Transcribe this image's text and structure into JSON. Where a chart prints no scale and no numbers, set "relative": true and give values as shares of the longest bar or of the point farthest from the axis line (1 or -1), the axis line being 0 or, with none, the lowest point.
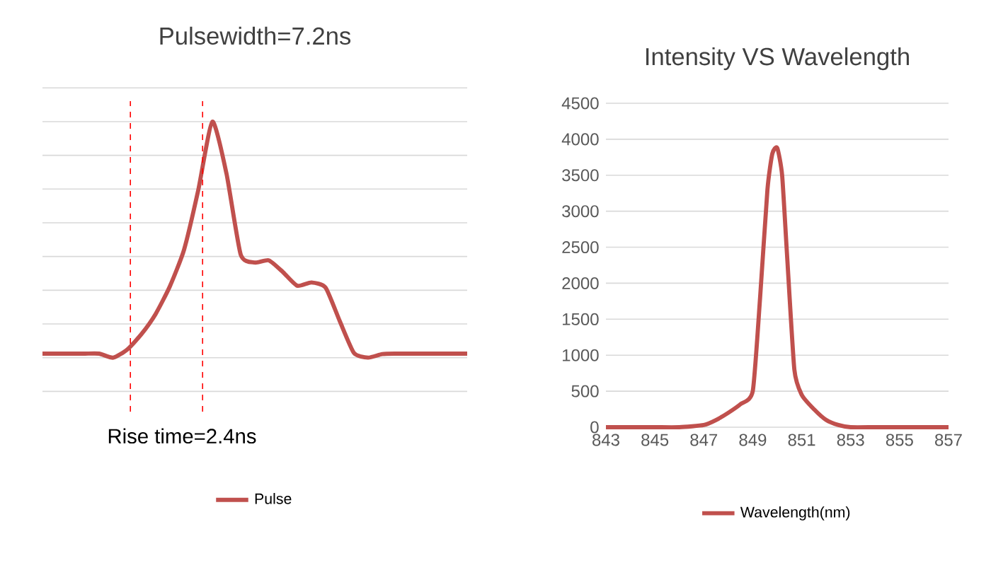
{
  "chart_data": [
    {
      "type": "line",
      "title": "Pulsewidth=7.2ns",
      "relative": true,
      "grid": "y",
      "legend": "bottom",
      "categories": [
        null,
        null,
        null,
        null,
        null,
        null,
        null,
        null,
        null,
        null,
        null,
        null,
        null,
        null,
        null,
        null,
        null,
        null,
        null,
        null,
        null,
        null,
        null,
        null,
        null,
        null,
        null,
        null,
        null,
        null,
        null
      ],
      "series": [
        {
          "name": "Pulse",
          "color": "#c0504d",
          "values": [
            0.022,
            0.022,
            0.022,
            0.022,
            0.022,
            0.005,
            0.04,
            0.105,
            0.19,
            0.306,
            0.46,
            0.71,
            1.0,
            0.78,
            0.44,
            0.406,
            0.415,
            0.365,
            0.308,
            0.322,
            0.3,
            0.159,
            0.025,
            0.005,
            0.02,
            0.022,
            0.022,
            0.022,
            0.022,
            0.022,
            0.022
          ]
        }
      ],
      "annotations": [
        "Rise time=2.4ns"
      ]
    },
    {
      "type": "line",
      "title": "Intensity VS Wavelength",
      "grid": "y",
      "legend": "bottom",
      "xlim": [
        843,
        857
      ],
      "xticks": [
        843,
        845,
        847,
        849,
        851,
        853,
        855,
        857
      ],
      "ylim": [
        0,
        4500
      ],
      "yticks": [
        0,
        500,
        1000,
        1500,
        2000,
        2500,
        3000,
        3500,
        4000,
        4500
      ],
      "series": [
        {
          "name": "Wavelength(nm)",
          "color": "#c0504d",
          "x": [
            843,
            844,
            845,
            846,
            847,
            847.5,
            848,
            848.5,
            849,
            849.3,
            849.6,
            849.8,
            850,
            850.2,
            850.4,
            850.7,
            851,
            851.5,
            852,
            852.5,
            853,
            854,
            855,
            856,
            857
          ],
          "values": [
            0,
            0,
            0,
            0,
            30,
            100,
            200,
            320,
            500,
            1800,
            3300,
            3800,
            3880,
            3500,
            2400,
            800,
            450,
            250,
            100,
            30,
            0,
            0,
            0,
            0,
            0
          ]
        }
      ]
    }
  ]
}
